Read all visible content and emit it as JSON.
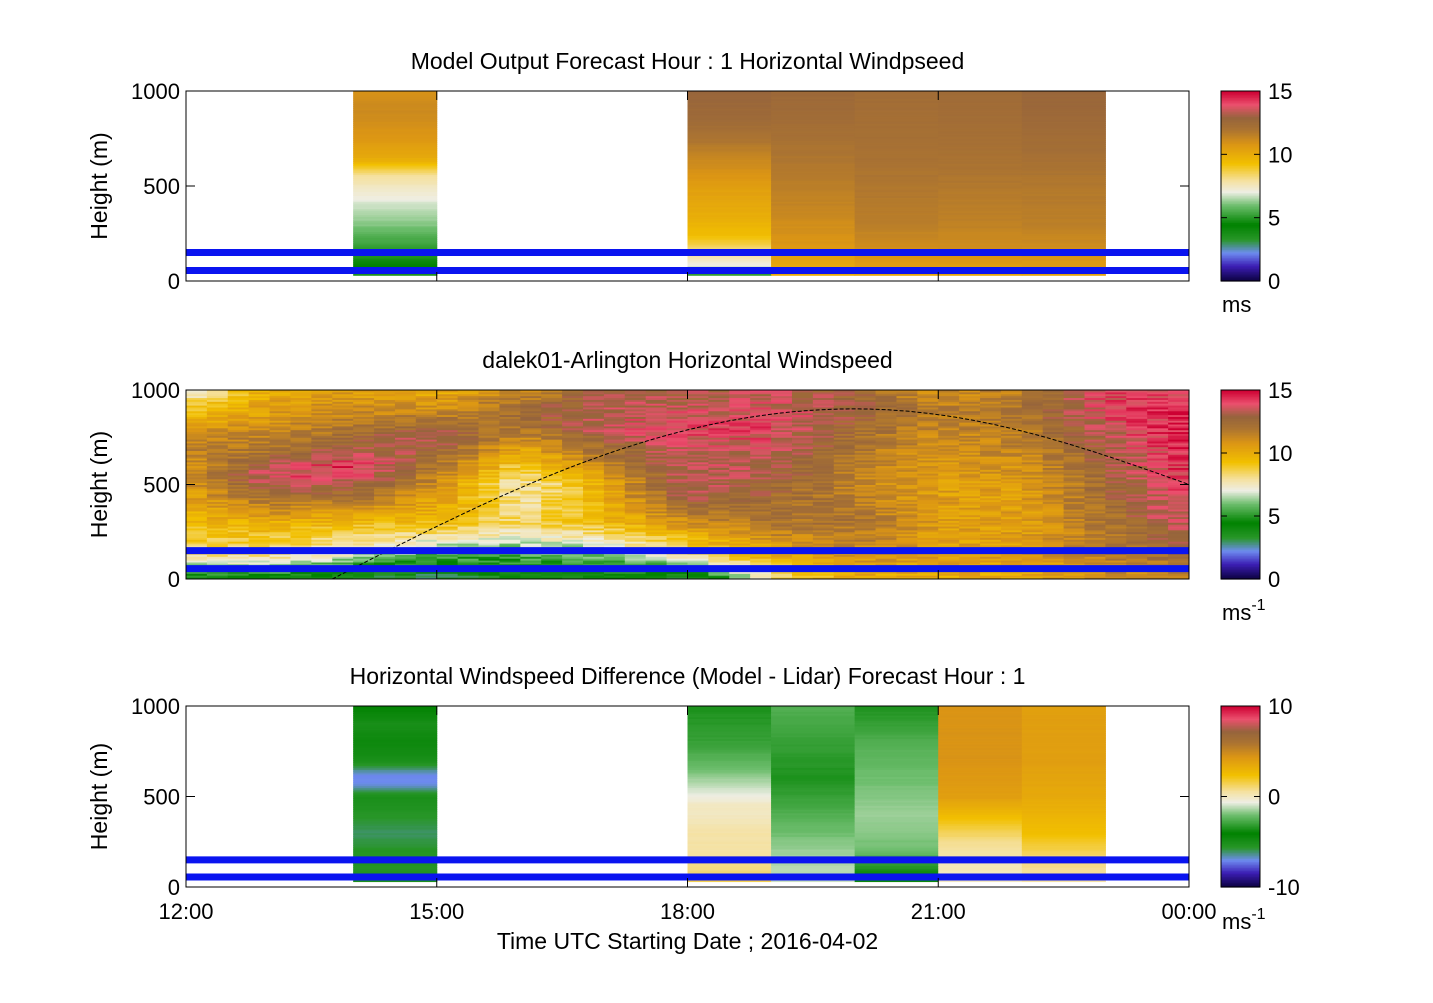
{
  "chart_data": [
    {
      "id": "model",
      "type": "heatmap",
      "title": "Model Output   Forecast Hour : 1 Horizontal Windpseed",
      "ylabel": "Height (m)",
      "ylim": [
        0,
        1000
      ],
      "yticks": [
        "0",
        "500",
        "1000"
      ],
      "xlim_hours": [
        12,
        24
      ],
      "colorbar": {
        "range": [
          0,
          15
        ],
        "ticks": [
          "0",
          "5",
          "10",
          "15"
        ],
        "unit": "ms",
        "unit_sup": ""
      },
      "ref_lines_m": [
        150,
        55
      ],
      "columns": [
        {
          "t0": 14.0,
          "t1": 15.0,
          "hmin": 30,
          "profile": [
            [
              30,
              3.5
            ],
            [
              80,
              4.5
            ],
            [
              150,
              5.0
            ],
            [
              220,
              5.5
            ],
            [
              300,
              6.2
            ],
            [
              400,
              6.8
            ],
            [
              480,
              7.4
            ],
            [
              560,
              8.0
            ],
            [
              640,
              10.0
            ],
            [
              760,
              10.8
            ],
            [
              900,
              11.2
            ],
            [
              1000,
              11.0
            ]
          ]
        },
        {
          "t0": 18.0,
          "t1": 19.0,
          "hmin": 30,
          "profile": [
            [
              30,
              5.0
            ],
            [
              80,
              7.0
            ],
            [
              150,
              8.0
            ],
            [
              250,
              9.5
            ],
            [
              350,
              10.0
            ],
            [
              450,
              10.3
            ],
            [
              550,
              10.8
            ],
            [
              650,
              11.3
            ],
            [
              750,
              12.0
            ],
            [
              850,
              12.5
            ],
            [
              1000,
              12.8
            ]
          ]
        },
        {
          "t0": 19.0,
          "t1": 20.0,
          "hmin": 30,
          "profile": [
            [
              30,
              10.0
            ],
            [
              100,
              10.3
            ],
            [
              200,
              10.8
            ],
            [
              300,
              11.1
            ],
            [
              400,
              11.4
            ],
            [
              500,
              11.6
            ],
            [
              600,
              11.8
            ],
            [
              700,
              12.0
            ],
            [
              850,
              12.4
            ],
            [
              1000,
              12.6
            ]
          ]
        },
        {
          "t0": 20.0,
          "t1": 21.0,
          "hmin": 30,
          "profile": [
            [
              30,
              10.2
            ],
            [
              150,
              11.0
            ],
            [
              300,
              11.6
            ],
            [
              450,
              11.8
            ],
            [
              600,
              12.0
            ],
            [
              750,
              12.2
            ],
            [
              1000,
              12.4
            ]
          ]
        },
        {
          "t0": 21.0,
          "t1": 22.0,
          "hmin": 30,
          "profile": [
            [
              30,
              10.2
            ],
            [
              150,
              11.0
            ],
            [
              300,
              11.5
            ],
            [
              450,
              11.7
            ],
            [
              600,
              12.0
            ],
            [
              800,
              12.3
            ],
            [
              1000,
              12.5
            ]
          ]
        },
        {
          "t0": 22.0,
          "t1": 23.0,
          "hmin": 30,
          "profile": [
            [
              30,
              10.3
            ],
            [
              150,
              11.0
            ],
            [
              300,
              11.6
            ],
            [
              500,
              11.8
            ],
            [
              700,
              12.3
            ],
            [
              1000,
              12.8
            ]
          ]
        }
      ]
    },
    {
      "id": "lidar",
      "type": "heatmap",
      "title": "dalek01-Arlington  Horizontal Windspeed",
      "ylabel": "Height (m)",
      "ylim": [
        0,
        1000
      ],
      "yticks": [
        "0",
        "500",
        "1000"
      ],
      "xlim_hours": [
        12,
        24
      ],
      "colorbar": {
        "range": [
          0,
          15
        ],
        "ticks": [
          "0",
          "5",
          "10",
          "15"
        ],
        "unit": "ms",
        "unit_sup": "-1"
      },
      "ref_lines_m": [
        150,
        55
      ],
      "boundary_layer": {
        "start_hour": 13.75,
        "peak_hour": 20.0,
        "peak_m": 900,
        "end_hour": 24.0,
        "end_m": 500
      },
      "column_width_hours": 0.25,
      "data_end_hour": 23.85,
      "profiles": [
        {
          "hour": 12.0,
          "profile": [
            [
              0,
              4
            ],
            [
              120,
              8
            ],
            [
              300,
              9.5
            ],
            [
              450,
              10.5
            ],
            [
              600,
              11
            ],
            [
              750,
              11.5
            ],
            [
              900,
              9
            ],
            [
              1000,
              7
            ]
          ]
        },
        {
          "hour": 13.0,
          "profile": [
            [
              0,
              4
            ],
            [
              120,
              8
            ],
            [
              300,
              10
            ],
            [
              450,
              12.5
            ],
            [
              550,
              14
            ],
            [
              650,
              12.5
            ],
            [
              800,
              11
            ],
            [
              1000,
              10
            ]
          ]
        },
        {
          "hour": 14.0,
          "profile": [
            [
              0,
              3
            ],
            [
              130,
              7
            ],
            [
              300,
              9.5
            ],
            [
              450,
              12.5
            ],
            [
              600,
              14.5
            ],
            [
              700,
              13
            ],
            [
              850,
              11.5
            ],
            [
              1000,
              10.5
            ]
          ]
        },
        {
          "hour": 15.0,
          "profile": [
            [
              0,
              3
            ],
            [
              130,
              5.5
            ],
            [
              300,
              9.5
            ],
            [
              450,
              10.5
            ],
            [
              600,
              12
            ],
            [
              750,
              13.5
            ],
            [
              900,
              11
            ],
            [
              1000,
              10
            ]
          ]
        },
        {
          "hour": 16.0,
          "profile": [
            [
              0,
              4
            ],
            [
              130,
              5.5
            ],
            [
              300,
              8.5
            ],
            [
              500,
              7.5
            ],
            [
              650,
              9.5
            ],
            [
              800,
              12
            ],
            [
              900,
              12.5
            ],
            [
              1000,
              11
            ]
          ]
        },
        {
          "hour": 17.0,
          "profile": [
            [
              0,
              4
            ],
            [
              130,
              6
            ],
            [
              300,
              9.5
            ],
            [
              500,
              10
            ],
            [
              650,
              12
            ],
            [
              800,
              13.5
            ],
            [
              1000,
              13
            ]
          ]
        },
        {
          "hour": 18.0,
          "profile": [
            [
              0,
              3
            ],
            [
              130,
              8
            ],
            [
              300,
              11
            ],
            [
              450,
              13.5
            ],
            [
              650,
              13.5
            ],
            [
              800,
              14
            ],
            [
              1000,
              13
            ]
          ]
        },
        {
          "hour": 19.0,
          "profile": [
            [
              0,
              8
            ],
            [
              130,
              10
            ],
            [
              300,
              12
            ],
            [
              450,
              12.5
            ],
            [
              650,
              13.5
            ],
            [
              800,
              14
            ],
            [
              1000,
              13.5
            ]
          ]
        },
        {
          "hour": 20.0,
          "profile": [
            [
              0,
              10
            ],
            [
              130,
              11
            ],
            [
              300,
              12
            ],
            [
              500,
              11.5
            ],
            [
              700,
              12
            ],
            [
              900,
              13
            ],
            [
              1000,
              12.5
            ]
          ]
        },
        {
          "hour": 21.0,
          "profile": [
            [
              0,
              10
            ],
            [
              130,
              10.5
            ],
            [
              300,
              10.5
            ],
            [
              500,
              10.5
            ],
            [
              700,
              11
            ],
            [
              900,
              11.5
            ],
            [
              1000,
              11
            ]
          ]
        },
        {
          "hour": 22.0,
          "profile": [
            [
              0,
              10
            ],
            [
              130,
              10.5
            ],
            [
              300,
              10.5
            ],
            [
              500,
              10.5
            ],
            [
              700,
              11.5
            ],
            [
              900,
              12
            ],
            [
              1000,
              11.5
            ]
          ]
        },
        {
          "hour": 23.0,
          "profile": [
            [
              0,
              11
            ],
            [
              130,
              11.5
            ],
            [
              300,
              12
            ],
            [
              500,
              12.5
            ],
            [
              700,
              13
            ],
            [
              900,
              14
            ],
            [
              1000,
              14
            ]
          ]
        },
        {
          "hour": 23.85,
          "profile": [
            [
              0,
              11
            ],
            [
              130,
              12.5
            ],
            [
              300,
              13.5
            ],
            [
              500,
              14
            ],
            [
              700,
              14.5
            ],
            [
              900,
              14.5
            ],
            [
              1000,
              14
            ]
          ]
        }
      ]
    },
    {
      "id": "difference",
      "type": "heatmap",
      "title": "Horizontal Windspeed Difference (Model - Lidar) Forecast Hour : 1",
      "ylabel": "Height (m)",
      "ylim": [
        0,
        1000
      ],
      "yticks": [
        "0",
        "500",
        "1000"
      ],
      "xlim_hours": [
        12,
        24
      ],
      "xticks": [
        "12:00",
        "15:00",
        "18:00",
        "21:00",
        "00:00"
      ],
      "xlabel": "Time UTC  Starting Date ; 2016-04-02",
      "colorbar": {
        "range": [
          -10,
          10
        ],
        "ticks": [
          "-10",
          "0",
          "10"
        ],
        "unit": "ms",
        "unit_sup": "-1"
      },
      "ref_lines_m": [
        150,
        55
      ],
      "columns": [
        {
          "t0": 14.0,
          "t1": 15.0,
          "hmin": 30,
          "profile": [
            [
              30,
              -5
            ],
            [
              100,
              -5.5
            ],
            [
              200,
              -5.5
            ],
            [
              300,
              -6
            ],
            [
              400,
              -5.5
            ],
            [
              500,
              -5
            ],
            [
              570,
              -7
            ],
            [
              620,
              -7
            ],
            [
              700,
              -5
            ],
            [
              800,
              -4.5
            ],
            [
              900,
              -5
            ],
            [
              1000,
              -4
            ]
          ]
        },
        {
          "t0": 18.0,
          "t1": 19.0,
          "hmin": 30,
          "profile": [
            [
              30,
              1.5
            ],
            [
              100,
              1.0
            ],
            [
              200,
              0.5
            ],
            [
              300,
              0.5
            ],
            [
              400,
              0
            ],
            [
              450,
              0
            ],
            [
              550,
              -1
            ],
            [
              650,
              -2
            ],
            [
              800,
              -3
            ],
            [
              1000,
              -3.5
            ]
          ]
        },
        {
          "t0": 19.0,
          "t1": 20.0,
          "hmin": 30,
          "profile": [
            [
              30,
              -1
            ],
            [
              200,
              -1.5
            ],
            [
              400,
              -2.5
            ],
            [
              600,
              -3.5
            ],
            [
              800,
              -3
            ],
            [
              1000,
              -2.5
            ]
          ]
        },
        {
          "t0": 20.0,
          "t1": 21.0,
          "hmin": 30,
          "profile": [
            [
              30,
              -4.5
            ],
            [
              200,
              -2
            ],
            [
              400,
              -1.5
            ],
            [
              600,
              -2
            ],
            [
              800,
              -2.5
            ],
            [
              1000,
              -3.5
            ]
          ]
        },
        {
          "t0": 21.0,
          "t1": 22.0,
          "hmin": 30,
          "profile": [
            [
              30,
              0
            ],
            [
              150,
              0.3
            ],
            [
              250,
              0.8
            ],
            [
              350,
              2
            ],
            [
              500,
              4
            ],
            [
              700,
              4.5
            ],
            [
              1000,
              4.5
            ]
          ]
        },
        {
          "t0": 22.0,
          "t1": 23.0,
          "hmin": 30,
          "profile": [
            [
              30,
              0.5
            ],
            [
              150,
              1.0
            ],
            [
              300,
              2.5
            ],
            [
              500,
              3.5
            ],
            [
              700,
              4
            ],
            [
              1000,
              4
            ]
          ]
        }
      ]
    }
  ]
}
